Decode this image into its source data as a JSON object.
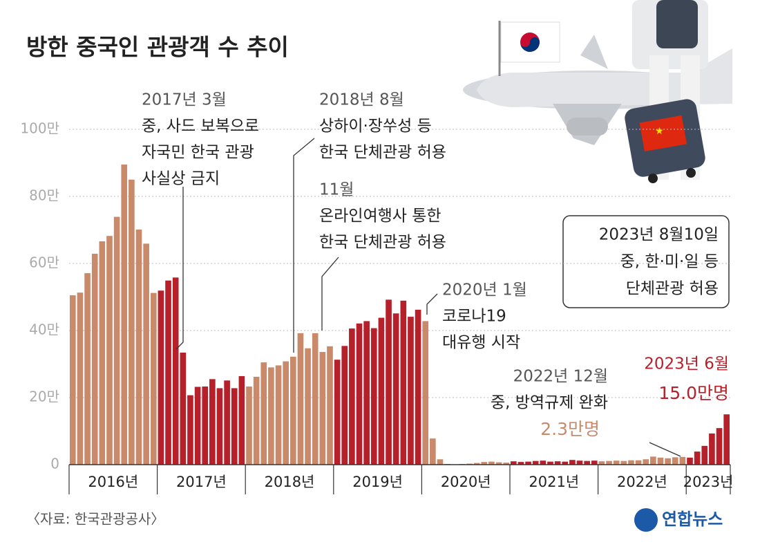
{
  "chart_data": {
    "type": "bar",
    "title": "방한 중국인 관광객 수 추이",
    "source": "〈자료: 한국관광공사〉",
    "logo": "연합뉴스",
    "ylim": [
      0,
      100
    ],
    "yticks": [
      0,
      {
        "value": 20,
        "label": "20만"
      },
      {
        "value": 40,
        "label": "40만"
      },
      {
        "value": 60,
        "label": "60만"
      },
      {
        "value": 80,
        "label": "80만"
      },
      {
        "value": 100,
        "label": "100만"
      }
    ],
    "grid": true,
    "series": [
      {
        "name": "2016년",
        "color": "#c88a6a",
        "values": [
          50.5,
          51.3,
          57.1,
          62.9,
          66.6,
          68.2,
          73.9,
          89.5,
          85.0,
          70.1,
          65.9,
          51.2
        ]
      },
      {
        "name": "2017년",
        "color": "#b5202a",
        "values": [
          51.9,
          54.9,
          55.8,
          33.4,
          20.7,
          23.2,
          23.3,
          25.5,
          22.8,
          25.1,
          22.8,
          26.4
        ]
      },
      {
        "name": "2018년",
        "color": "#c88a6a",
        "values": [
          23.3,
          26.2,
          30.5,
          29.0,
          29.6,
          30.8,
          32.2,
          39.2,
          34.7,
          39.2,
          33.6,
          35.3
        ]
      },
      {
        "name": "2019년",
        "color": "#b5202a",
        "values": [
          31.3,
          35.4,
          40.6,
          42.1,
          42.8,
          40.7,
          43.8,
          49.2,
          45.1,
          48.9,
          44.1,
          46.2
        ]
      },
      {
        "name": "2020년",
        "color": "#c88a6a",
        "values": [
          42.8,
          7.8,
          1.6,
          0.2,
          0.1,
          0.2,
          0.3,
          0.5,
          0.8,
          0.9,
          0.7,
          0.6
        ]
      },
      {
        "name": "2021년",
        "color": "#b5202a",
        "values": [
          1.0,
          0.8,
          0.9,
          1.1,
          1.2,
          0.9,
          1.0,
          0.9,
          1.4,
          1.2,
          1.1,
          1.2
        ]
      },
      {
        "name": "2022년",
        "color": "#c88a6a",
        "values": [
          1.0,
          1.1,
          1.2,
          1.1,
          1.3,
          1.3,
          1.6,
          2.4,
          2.1,
          1.9,
          2.2,
          2.3
        ],
        "value_labels": [
          null,
          null,
          null,
          null,
          null,
          null,
          null,
          null,
          null,
          null,
          null,
          "2.3만명"
        ]
      },
      {
        "name": "2023년",
        "color": "#b5202a",
        "values": [
          2.1,
          3.9,
          5.6,
          9.3,
          10.9,
          15.0
        ],
        "value_labels": [
          null,
          null,
          null,
          null,
          null,
          "15.0만명"
        ]
      }
    ],
    "annotations": [
      {
        "lines": [
          "2017년 3월",
          "중, 사드 보복으로",
          "자국민 한국 관광",
          "사실상 금지"
        ]
      },
      {
        "lines": [
          "2018년 8월",
          "상하이·장쑤성 등",
          "한국 단체관광 허용"
        ]
      },
      {
        "lines": [
          "11월",
          "온라인여행사 통한",
          "한국 단체관광 허용"
        ]
      },
      {
        "lines": [
          "2020년 1월",
          "코로나19",
          "대유행 시작"
        ]
      },
      {
        "lines": [
          "2022년 12월",
          "중, 방역규제 완화"
        ]
      },
      {
        "lines": [
          "2023년 6월"
        ]
      },
      {
        "lines": [
          "2023년 8월10일",
          "중, 한·미·일 등",
          "단체관광 허용"
        ]
      }
    ]
  }
}
